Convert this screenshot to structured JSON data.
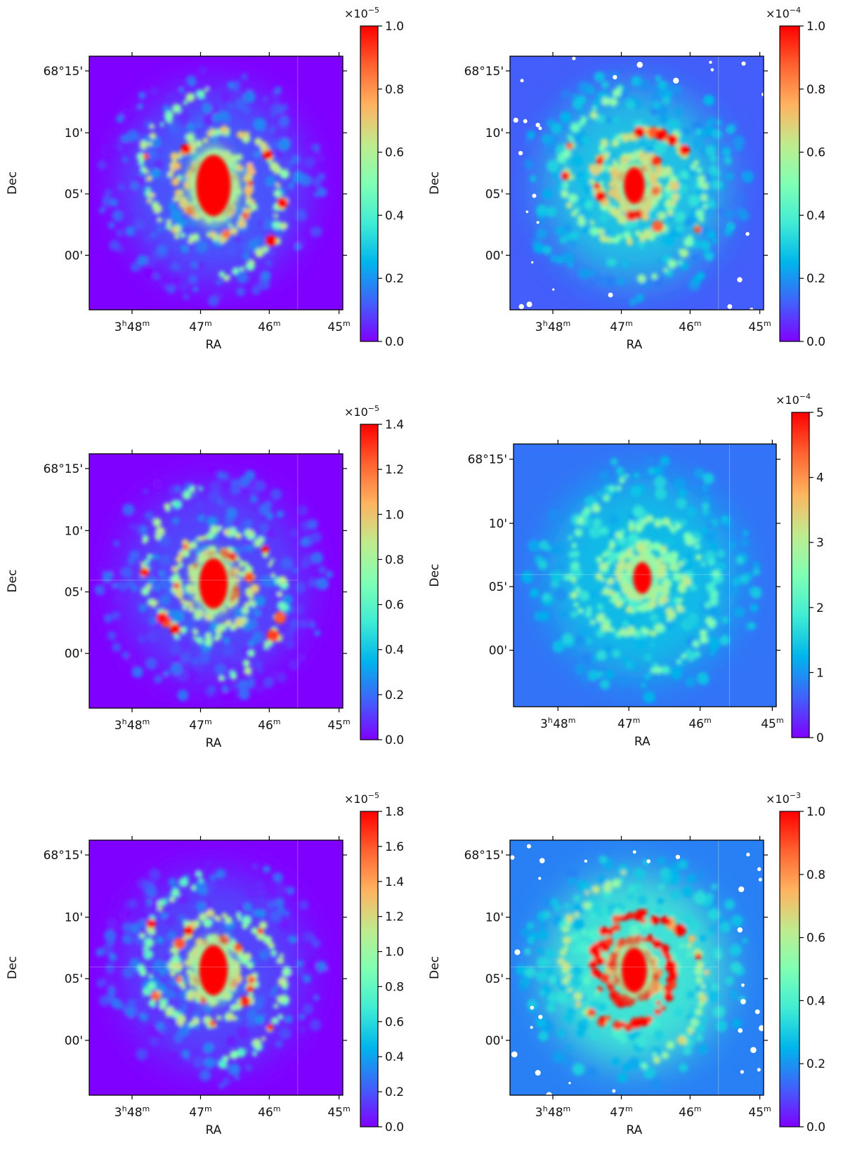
{
  "chart_data": [
    {
      "type": "heatmap",
      "xlabel": "RA",
      "ylabel": "Dec",
      "x_tick_labels": [
        [
          {
            "t": "3"
          },
          {
            "sup": "h"
          },
          {
            "t": "48"
          },
          {
            "sup": "m"
          }
        ],
        [
          {
            "t": "47"
          },
          {
            "sup": "m"
          }
        ],
        [
          {
            "t": "46"
          },
          {
            "sup": "m"
          }
        ],
        [
          {
            "t": "45"
          },
          {
            "sup": "m"
          }
        ]
      ],
      "y_tick_labels": [
        "68°15'",
        "10'",
        "05'",
        "00'"
      ],
      "colorbar": {
        "colormap": "rainbow",
        "vmin": 0.0,
        "vmax": 1.0,
        "multiplier_base": "×10",
        "multiplier_exp": "−5",
        "ticks": [
          "0.0",
          "0.2",
          "0.4",
          "0.6",
          "0.8",
          "1.0"
        ],
        "tick_values": [
          0,
          0.2,
          0.4,
          0.6,
          0.8,
          1.0
        ]
      }
    },
    {
      "type": "heatmap",
      "xlabel": "RA",
      "ylabel": "Dec",
      "x_tick_labels": [
        [
          {
            "t": "3"
          },
          {
            "sup": "h"
          },
          {
            "t": "48"
          },
          {
            "sup": "m"
          }
        ],
        [
          {
            "t": "47"
          },
          {
            "sup": "m"
          }
        ],
        [
          {
            "t": "46"
          },
          {
            "sup": "m"
          }
        ],
        [
          {
            "t": "45"
          },
          {
            "sup": "m"
          }
        ]
      ],
      "y_tick_labels": [
        "68°15'",
        "10'",
        "05'",
        "00'"
      ],
      "colorbar": {
        "colormap": "rainbow",
        "vmin": 0.0,
        "vmax": 1.0,
        "multiplier_base": "×10",
        "multiplier_exp": "−4",
        "ticks": [
          "0.0",
          "0.2",
          "0.4",
          "0.6",
          "0.8",
          "1.0"
        ],
        "tick_values": [
          0,
          0.2,
          0.4,
          0.6,
          0.8,
          1.0
        ]
      }
    },
    {
      "type": "heatmap",
      "xlabel": "RA",
      "ylabel": "Dec",
      "x_tick_labels": [
        [
          {
            "t": "3"
          },
          {
            "sup": "h"
          },
          {
            "t": "48"
          },
          {
            "sup": "m"
          }
        ],
        [
          {
            "t": "47"
          },
          {
            "sup": "m"
          }
        ],
        [
          {
            "t": "46"
          },
          {
            "sup": "m"
          }
        ],
        [
          {
            "t": "45"
          },
          {
            "sup": "m"
          }
        ]
      ],
      "y_tick_labels": [
        "68°15'",
        "10'",
        "05'",
        "00'"
      ],
      "colorbar": {
        "colormap": "rainbow",
        "vmin": 0.0,
        "vmax": 1.4,
        "multiplier_base": "×10",
        "multiplier_exp": "−5",
        "ticks": [
          "0.0",
          "0.2",
          "0.4",
          "0.6",
          "0.8",
          "1.0",
          "1.2",
          "1.4"
        ],
        "tick_values": [
          0,
          0.2,
          0.4,
          0.6,
          0.8,
          1.0,
          1.2,
          1.4
        ]
      }
    },
    {
      "type": "heatmap",
      "xlabel": "RA",
      "ylabel": "Dec",
      "x_tick_labels": [
        [
          {
            "t": "3"
          },
          {
            "sup": "h"
          },
          {
            "t": "48"
          },
          {
            "sup": "m"
          }
        ],
        [
          {
            "t": "47"
          },
          {
            "sup": "m"
          }
        ],
        [
          {
            "t": "46"
          },
          {
            "sup": "m"
          }
        ],
        [
          {
            "t": "45"
          },
          {
            "sup": "m"
          }
        ]
      ],
      "y_tick_labels": [
        "68°15'",
        "10'",
        "05'",
        "00'"
      ],
      "colorbar": {
        "colormap": "rainbow",
        "vmin": 0,
        "vmax": 5,
        "multiplier_base": "×10",
        "multiplier_exp": "−4",
        "ticks": [
          "0",
          "1",
          "2",
          "3",
          "4",
          "5"
        ],
        "tick_values": [
          0,
          1,
          2,
          3,
          4,
          5
        ]
      }
    },
    {
      "type": "heatmap",
      "xlabel": "RA",
      "ylabel": "Dec",
      "x_tick_labels": [
        [
          {
            "t": "3"
          },
          {
            "sup": "h"
          },
          {
            "t": "48"
          },
          {
            "sup": "m"
          }
        ],
        [
          {
            "t": "47"
          },
          {
            "sup": "m"
          }
        ],
        [
          {
            "t": "46"
          },
          {
            "sup": "m"
          }
        ],
        [
          {
            "t": "45"
          },
          {
            "sup": "m"
          }
        ]
      ],
      "y_tick_labels": [
        "68°15'",
        "10'",
        "05'",
        "00'"
      ],
      "colorbar": {
        "colormap": "rainbow",
        "vmin": 0.0,
        "vmax": 1.8,
        "multiplier_base": "×10",
        "multiplier_exp": "−5",
        "ticks": [
          "0.0",
          "0.2",
          "0.4",
          "0.6",
          "0.8",
          "1.0",
          "1.2",
          "1.4",
          "1.6",
          "1.8"
        ],
        "tick_values": [
          0,
          0.2,
          0.4,
          0.6,
          0.8,
          1.0,
          1.2,
          1.4,
          1.6,
          1.8
        ]
      }
    },
    {
      "type": "heatmap",
      "xlabel": "RA",
      "ylabel": "Dec",
      "x_tick_labels": [
        [
          {
            "t": "3"
          },
          {
            "sup": "h"
          },
          {
            "t": "48"
          },
          {
            "sup": "m"
          }
        ],
        [
          {
            "t": "47"
          },
          {
            "sup": "m"
          }
        ],
        [
          {
            "t": "46"
          },
          {
            "sup": "m"
          }
        ],
        [
          {
            "t": "45"
          },
          {
            "sup": "m"
          }
        ]
      ],
      "y_tick_labels": [
        "68°15'",
        "10'",
        "05'",
        "00'"
      ],
      "colorbar": {
        "colormap": "rainbow",
        "vmin": 0.0,
        "vmax": 1.0,
        "multiplier_base": "×10",
        "multiplier_exp": "−3",
        "ticks": [
          "0.0",
          "0.2",
          "0.4",
          "0.6",
          "0.8",
          "1.0"
        ],
        "tick_values": [
          0,
          0.2,
          0.4,
          0.6,
          0.8,
          1.0
        ]
      }
    }
  ]
}
